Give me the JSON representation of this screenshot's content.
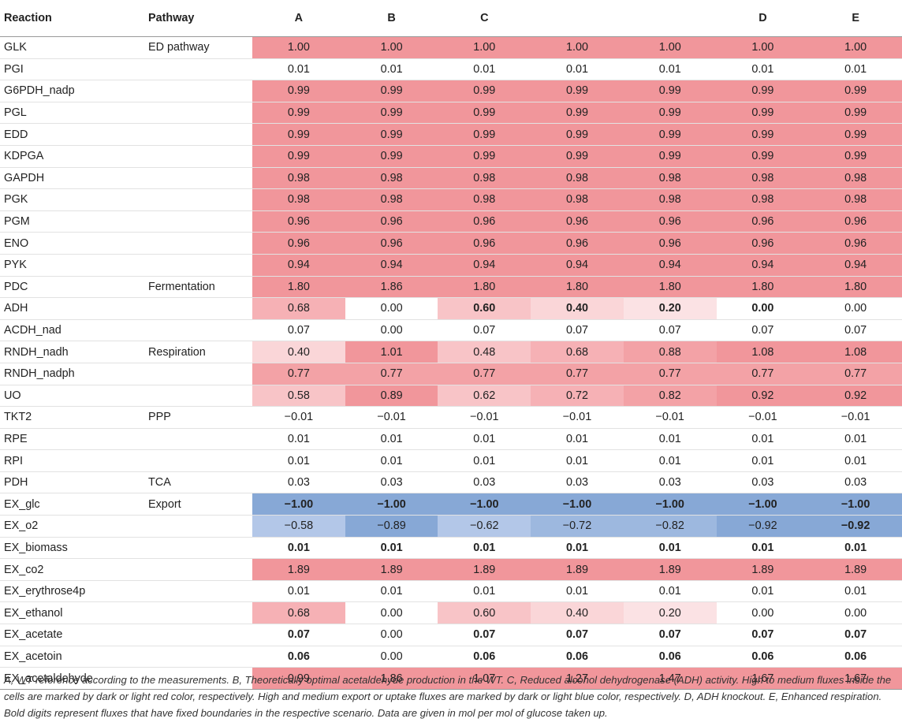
{
  "table": {
    "headers": [
      "Reaction",
      "Pathway",
      "A",
      "B",
      "C",
      "",
      "",
      "D",
      "E"
    ],
    "rows": [
      {
        "reaction": "GLK",
        "pathway": "ED pathway",
        "values": [
          "1.00",
          "1.00",
          "1.00",
          "1.00",
          "1.00",
          "1.00",
          "1.00"
        ],
        "shades": [
          "rd",
          "rd",
          "rd",
          "rd",
          "rd",
          "rd",
          "rd"
        ],
        "bold": [
          0,
          0,
          0,
          0,
          0,
          0,
          0
        ]
      },
      {
        "reaction": "PGI",
        "pathway": "",
        "values": [
          "0.01",
          "0.01",
          "0.01",
          "0.01",
          "0.01",
          "0.01",
          "0.01"
        ],
        "shades": [
          "",
          "",
          "",
          "",
          "",
          "",
          ""
        ],
        "bold": [
          0,
          0,
          0,
          0,
          0,
          0,
          0
        ]
      },
      {
        "reaction": "G6PDH_nadp",
        "pathway": "",
        "values": [
          "0.99",
          "0.99",
          "0.99",
          "0.99",
          "0.99",
          "0.99",
          "0.99"
        ],
        "shades": [
          "rd",
          "rd",
          "rd",
          "rd",
          "rd",
          "rd",
          "rd"
        ],
        "bold": [
          0,
          0,
          0,
          0,
          0,
          0,
          0
        ]
      },
      {
        "reaction": "PGL",
        "pathway": "",
        "values": [
          "0.99",
          "0.99",
          "0.99",
          "0.99",
          "0.99",
          "0.99",
          "0.99"
        ],
        "shades": [
          "rd",
          "rd",
          "rd",
          "rd",
          "rd",
          "rd",
          "rd"
        ],
        "bold": [
          0,
          0,
          0,
          0,
          0,
          0,
          0
        ]
      },
      {
        "reaction": "EDD",
        "pathway": "",
        "values": [
          "0.99",
          "0.99",
          "0.99",
          "0.99",
          "0.99",
          "0.99",
          "0.99"
        ],
        "shades": [
          "rd",
          "rd",
          "rd",
          "rd",
          "rd",
          "rd",
          "rd"
        ],
        "bold": [
          0,
          0,
          0,
          0,
          0,
          0,
          0
        ]
      },
      {
        "reaction": "KDPGA",
        "pathway": "",
        "values": [
          "0.99",
          "0.99",
          "0.99",
          "0.99",
          "0.99",
          "0.99",
          "0.99"
        ],
        "shades": [
          "rd",
          "rd",
          "rd",
          "rd",
          "rd",
          "rd",
          "rd"
        ],
        "bold": [
          0,
          0,
          0,
          0,
          0,
          0,
          0
        ]
      },
      {
        "reaction": "GAPDH",
        "pathway": "",
        "values": [
          "0.98",
          "0.98",
          "0.98",
          "0.98",
          "0.98",
          "0.98",
          "0.98"
        ],
        "shades": [
          "rd",
          "rd",
          "rd",
          "rd",
          "rd",
          "rd",
          "rd"
        ],
        "bold": [
          0,
          0,
          0,
          0,
          0,
          0,
          0
        ]
      },
      {
        "reaction": "PGK",
        "pathway": "",
        "values": [
          "0.98",
          "0.98",
          "0.98",
          "0.98",
          "0.98",
          "0.98",
          "0.98"
        ],
        "shades": [
          "rd",
          "rd",
          "rd",
          "rd",
          "rd",
          "rd",
          "rd"
        ],
        "bold": [
          0,
          0,
          0,
          0,
          0,
          0,
          0
        ]
      },
      {
        "reaction": "PGM",
        "pathway": "",
        "values": [
          "0.96",
          "0.96",
          "0.96",
          "0.96",
          "0.96",
          "0.96",
          "0.96"
        ],
        "shades": [
          "rd",
          "rd",
          "rd",
          "rd",
          "rd",
          "rd",
          "rd"
        ],
        "bold": [
          0,
          0,
          0,
          0,
          0,
          0,
          0
        ]
      },
      {
        "reaction": "ENO",
        "pathway": "",
        "values": [
          "0.96",
          "0.96",
          "0.96",
          "0.96",
          "0.96",
          "0.96",
          "0.96"
        ],
        "shades": [
          "rd",
          "rd",
          "rd",
          "rd",
          "rd",
          "rd",
          "rd"
        ],
        "bold": [
          0,
          0,
          0,
          0,
          0,
          0,
          0
        ]
      },
      {
        "reaction": "PYK",
        "pathway": "",
        "values": [
          "0.94",
          "0.94",
          "0.94",
          "0.94",
          "0.94",
          "0.94",
          "0.94"
        ],
        "shades": [
          "rd",
          "rd",
          "rd",
          "rd",
          "rd",
          "rd",
          "rd"
        ],
        "bold": [
          0,
          0,
          0,
          0,
          0,
          0,
          0
        ]
      },
      {
        "reaction": "PDC",
        "pathway": "Fermentation",
        "values": [
          "1.80",
          "1.86",
          "1.80",
          "1.80",
          "1.80",
          "1.80",
          "1.80"
        ],
        "shades": [
          "rd",
          "rd",
          "rd",
          "rd",
          "rd",
          "rd",
          "rd"
        ],
        "bold": [
          0,
          0,
          0,
          0,
          0,
          0,
          0
        ]
      },
      {
        "reaction": "ADH",
        "pathway": "",
        "values": [
          "0.68",
          "0.00",
          "0.60",
          "0.40",
          "0.20",
          "0.00",
          "0.00"
        ],
        "shades": [
          "rm",
          "",
          "rl",
          "rx",
          "ry",
          "",
          ""
        ],
        "bold": [
          0,
          0,
          1,
          1,
          1,
          1,
          0
        ]
      },
      {
        "reaction": "ACDH_nad",
        "pathway": "",
        "values": [
          "0.07",
          "0.00",
          "0.07",
          "0.07",
          "0.07",
          "0.07",
          "0.07"
        ],
        "shades": [
          "",
          "",
          "",
          "",
          "",
          "",
          ""
        ],
        "bold": [
          0,
          0,
          0,
          0,
          0,
          0,
          0
        ]
      },
      {
        "reaction": "RNDH_nadh",
        "pathway": "Respiration",
        "values": [
          "0.40",
          "1.01",
          "0.48",
          "0.68",
          "0.88",
          "1.08",
          "1.08"
        ],
        "shades": [
          "rx",
          "rd",
          "rl",
          "rm",
          "rh",
          "rd",
          "rd"
        ],
        "bold": [
          0,
          0,
          0,
          0,
          0,
          0,
          0
        ]
      },
      {
        "reaction": "RNDH_nadph",
        "pathway": "",
        "values": [
          "0.77",
          "0.77",
          "0.77",
          "0.77",
          "0.77",
          "0.77",
          "0.77"
        ],
        "shades": [
          "rh",
          "rh",
          "rh",
          "rh",
          "rh",
          "rh",
          "rh"
        ],
        "bold": [
          0,
          0,
          0,
          0,
          0,
          0,
          0
        ]
      },
      {
        "reaction": "UO",
        "pathway": "",
        "values": [
          "0.58",
          "0.89",
          "0.62",
          "0.72",
          "0.82",
          "0.92",
          "0.92"
        ],
        "shades": [
          "rl",
          "rd",
          "rl",
          "rm",
          "rh",
          "rd",
          "rd"
        ],
        "bold": [
          0,
          0,
          0,
          0,
          0,
          0,
          0
        ]
      },
      {
        "reaction": "TKT2",
        "pathway": "PPP",
        "values": [
          "−0.01",
          "−0.01",
          "−0.01",
          "−0.01",
          "−0.01",
          "−0.01",
          "−0.01"
        ],
        "shades": [
          "",
          "",
          "",
          "",
          "",
          "",
          ""
        ],
        "bold": [
          0,
          0,
          0,
          0,
          0,
          0,
          0
        ]
      },
      {
        "reaction": "RPE",
        "pathway": "",
        "values": [
          "0.01",
          "0.01",
          "0.01",
          "0.01",
          "0.01",
          "0.01",
          "0.01"
        ],
        "shades": [
          "",
          "",
          "",
          "",
          "",
          "",
          ""
        ],
        "bold": [
          0,
          0,
          0,
          0,
          0,
          0,
          0
        ]
      },
      {
        "reaction": "RPI",
        "pathway": "",
        "values": [
          "0.01",
          "0.01",
          "0.01",
          "0.01",
          "0.01",
          "0.01",
          "0.01"
        ],
        "shades": [
          "",
          "",
          "",
          "",
          "",
          "",
          ""
        ],
        "bold": [
          0,
          0,
          0,
          0,
          0,
          0,
          0
        ]
      },
      {
        "reaction": "PDH",
        "pathway": "TCA",
        "values": [
          "0.03",
          "0.03",
          "0.03",
          "0.03",
          "0.03",
          "0.03",
          "0.03"
        ],
        "shades": [
          "",
          "",
          "",
          "",
          "",
          "",
          ""
        ],
        "bold": [
          0,
          0,
          0,
          0,
          0,
          0,
          0
        ]
      },
      {
        "reaction": "EX_glc",
        "pathway": "Export",
        "values": [
          "−1.00",
          "−1.00",
          "−1.00",
          "−1.00",
          "−1.00",
          "−1.00",
          "−1.00"
        ],
        "shades": [
          "bd",
          "bd",
          "bd",
          "bd",
          "bd",
          "bd",
          "bd"
        ],
        "bold": [
          1,
          1,
          1,
          1,
          1,
          1,
          1
        ]
      },
      {
        "reaction": "EX_o2",
        "pathway": "",
        "values": [
          "−0.58",
          "−0.89",
          "−0.62",
          "−0.72",
          "−0.82",
          "−0.92",
          "−0.92"
        ],
        "shades": [
          "bl",
          "bd",
          "bl",
          "bm",
          "bm",
          "bd",
          "bd"
        ],
        "bold": [
          0,
          0,
          0,
          0,
          0,
          0,
          1
        ]
      },
      {
        "reaction": "EX_biomass",
        "pathway": "",
        "values": [
          "0.01",
          "0.01",
          "0.01",
          "0.01",
          "0.01",
          "0.01",
          "0.01"
        ],
        "shades": [
          "",
          "",
          "",
          "",
          "",
          "",
          ""
        ],
        "bold": [
          1,
          1,
          1,
          1,
          1,
          1,
          1
        ]
      },
      {
        "reaction": "EX_co2",
        "pathway": "",
        "values": [
          "1.89",
          "1.89",
          "1.89",
          "1.89",
          "1.89",
          "1.89",
          "1.89"
        ],
        "shades": [
          "rd",
          "rd",
          "rd",
          "rd",
          "rd",
          "rd",
          "rd"
        ],
        "bold": [
          0,
          0,
          0,
          0,
          0,
          0,
          0
        ]
      },
      {
        "reaction": "EX_erythrose4p",
        "pathway": "",
        "values": [
          "0.01",
          "0.01",
          "0.01",
          "0.01",
          "0.01",
          "0.01",
          "0.01"
        ],
        "shades": [
          "",
          "",
          "",
          "",
          "",
          "",
          ""
        ],
        "bold": [
          0,
          0,
          0,
          0,
          0,
          0,
          0
        ]
      },
      {
        "reaction": "EX_ethanol",
        "pathway": "",
        "values": [
          "0.68",
          "0.00",
          "0.60",
          "0.40",
          "0.20",
          "0.00",
          "0.00"
        ],
        "shades": [
          "rm",
          "",
          "rl",
          "rx",
          "ry",
          "",
          ""
        ],
        "bold": [
          0,
          0,
          0,
          0,
          0,
          0,
          0
        ]
      },
      {
        "reaction": "EX_acetate",
        "pathway": "",
        "values": [
          "0.07",
          "0.00",
          "0.07",
          "0.07",
          "0.07",
          "0.07",
          "0.07"
        ],
        "shades": [
          "",
          "",
          "",
          "",
          "",
          "",
          ""
        ],
        "bold": [
          1,
          0,
          1,
          1,
          1,
          1,
          1
        ]
      },
      {
        "reaction": "EX_acetoin",
        "pathway": "",
        "values": [
          "0.06",
          "0.00",
          "0.06",
          "0.06",
          "0.06",
          "0.06",
          "0.06"
        ],
        "shades": [
          "",
          "",
          "",
          "",
          "",
          "",
          ""
        ],
        "bold": [
          1,
          0,
          1,
          1,
          1,
          1,
          1
        ]
      },
      {
        "reaction": "EX_acetaldehyde",
        "pathway": "",
        "values": [
          "0.99",
          "1.86",
          "1.07",
          "1.27",
          "1.47",
          "1.67",
          "1.67"
        ],
        "shades": [
          "rd",
          "rd",
          "rd",
          "rd",
          "rd",
          "rd",
          "rd"
        ],
        "bold": [
          0,
          0,
          0,
          0,
          0,
          0,
          0
        ]
      }
    ]
  },
  "colors": {
    "rd": "#f1969b",
    "rh": "#f3a2a6",
    "rm": "#f6b1b5",
    "rl": "#f8c4c7",
    "rx": "#fad6d8",
    "ry": "#fbe2e4",
    "bd": "#87a8d6",
    "bm": "#9db8df",
    "bl": "#b3c7e8"
  },
  "footnote": "A, WT reference according to the measurements. B, Theoretically optimal acetaldehyde production in the WT. C, Reduced alcohol dehydrogenase (ADH) activity. High to medium fluxes inside the cells are marked by dark or light red color, respectively. High and medium export or uptake fluxes are marked by dark or light blue color, respectively. D, ADH knockout. E, Enhanced respiration. Bold digits represent fluxes that have fixed boundaries in the respective scenario. Data are given in mol per mol of glucose taken up."
}
